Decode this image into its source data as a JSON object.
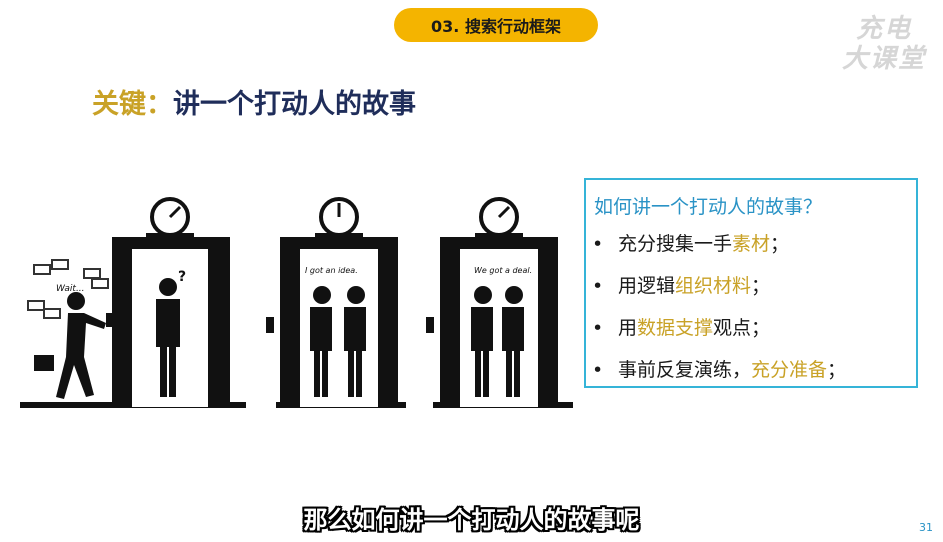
{
  "header": {
    "section_label": "03. 搜索行动框架"
  },
  "watermark": {
    "line1": "充电",
    "line2": "大课堂"
  },
  "headline": {
    "keyword": "关键：",
    "text": "讲一个打动人的故事"
  },
  "illustration": {
    "caption_1": "Wait...",
    "caption_2": "?",
    "caption_3": "I got an idea.",
    "caption_4": "We got a deal."
  },
  "tips": {
    "question": "如何讲一个打动人的故事？",
    "items": [
      {
        "bullet": "•",
        "pre": "充分搜集一手",
        "hl": "素材",
        "post": "；"
      },
      {
        "bullet": "•",
        "pre": "用逻辑",
        "hl": "组织材料",
        "post": "；"
      },
      {
        "bullet": "•",
        "pre": "用",
        "hl": "数据支撑",
        "post": "观点；"
      },
      {
        "bullet": "•",
        "pre": "事前反复演练，",
        "hl": "充分准备",
        "post": "；"
      }
    ]
  },
  "subtitle": "那么如何讲一个打动人的故事呢",
  "page_number": "31",
  "colors": {
    "accent_gold": "#c9a227",
    "pill_yellow": "#f4b400",
    "box_blue": "#35b4d8",
    "title_navy": "#1f2d5a"
  }
}
